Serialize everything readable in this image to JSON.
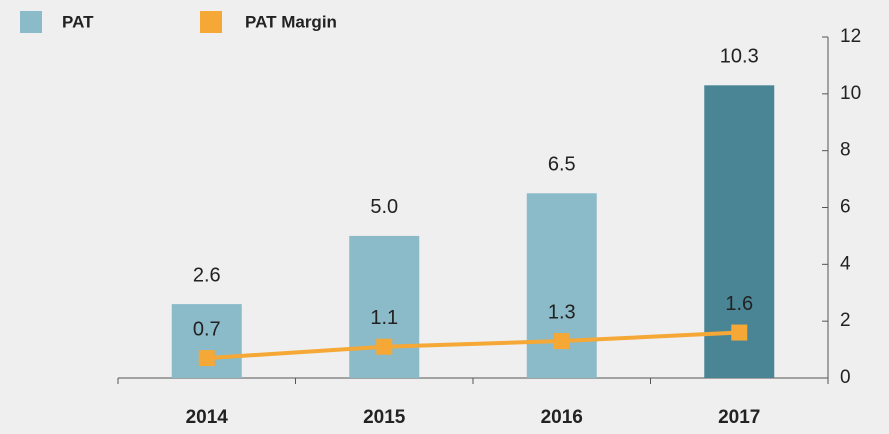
{
  "chart_data": {
    "type": "bar",
    "categories": [
      "2014",
      "2015",
      "2016",
      "2017"
    ],
    "series": [
      {
        "name": "PAT",
        "type": "bar",
        "color": "#8bbac8",
        "colors": [
          "#8bbac8",
          "#8bbac8",
          "#8bbac8",
          "#4a8596"
        ],
        "values": [
          2.6,
          5.0,
          6.5,
          10.3
        ],
        "value_labels": [
          "2.6",
          "5.0",
          "6.5",
          "10.3"
        ]
      },
      {
        "name": "PAT Margin",
        "type": "line",
        "color": "#f5a836",
        "values": [
          0.7,
          1.1,
          1.3,
          1.6
        ]
      }
    ],
    "ylim": [
      0,
      12
    ],
    "yticks": [
      0,
      2,
      4,
      6,
      8,
      10,
      12
    ],
    "y_axis_side": "right",
    "grid": false
  }
}
